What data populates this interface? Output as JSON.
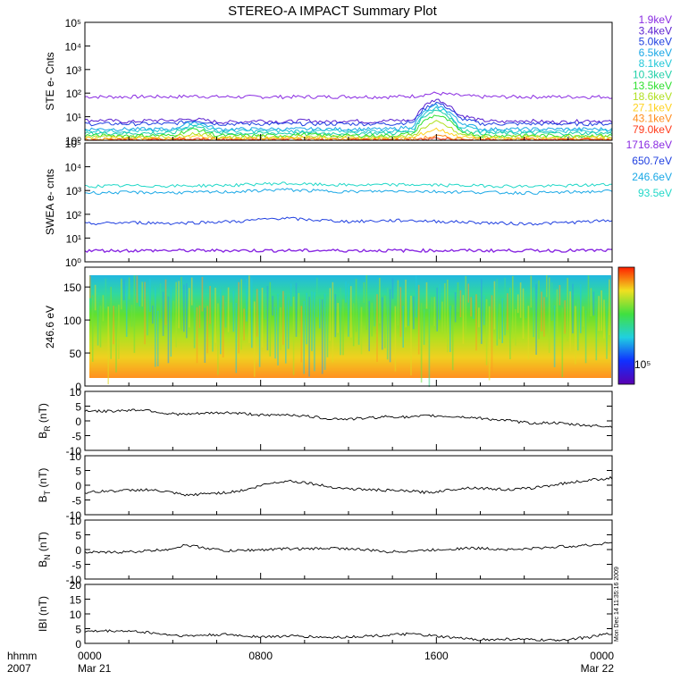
{
  "title": "STEREO-A IMPACT Summary Plot",
  "stamp": "Mon Dec 14 11:35:16 2009",
  "time_axis": {
    "ticks": [
      {
        "label": "0000",
        "sublabel": "Mar 21",
        "hour": 0
      },
      {
        "label": "0800",
        "sublabel": "",
        "hour": 8
      },
      {
        "label": "1600",
        "sublabel": "",
        "hour": 16
      },
      {
        "label": "0000",
        "sublabel": "Mar 22",
        "hour": 24
      }
    ],
    "left_label_1": "hhmm",
    "left_label_2": "2007"
  },
  "colors": {
    "ste": [
      "#8a2be2",
      "#5a1fd0",
      "#1f3fe0",
      "#1aa8e6",
      "#22c8d8",
      "#20d0a8",
      "#30e030",
      "#b0e020",
      "#ffd21e",
      "#ff8c1a",
      "#ff3a1a"
    ],
    "swea": [
      "#8a2be2",
      "#1f3fe0",
      "#1aa8e6",
      "#22d8c8"
    ]
  },
  "chart_data": [
    {
      "id": "ste",
      "type": "line",
      "ylabel": "STE e- Cnts",
      "yscale": "log",
      "ylim": [
        1,
        100000
      ],
      "ytick_labels": [
        "10⁰",
        "10¹",
        "10²",
        "10³",
        "10⁴",
        "10⁵"
      ],
      "series": [
        {
          "name": "1.9keV",
          "values": [
            70,
            70,
            70,
            72,
            70,
            75,
            70,
            70,
            70,
            70,
            70,
            70,
            72,
            70,
            70,
            75,
            100,
            80,
            70,
            70,
            70,
            70,
            70,
            70,
            70
          ]
        },
        {
          "name": "3.4keV",
          "values": [
            7,
            7,
            6,
            7,
            7,
            8,
            6,
            6,
            7,
            6,
            7,
            6,
            7,
            6,
            7,
            7,
            55,
            12,
            7,
            6,
            7,
            6,
            6,
            7,
            6
          ]
        },
        {
          "name": "5.0keV",
          "values": [
            5,
            5,
            5,
            5,
            5,
            7,
            5,
            5,
            5,
            5,
            5,
            5,
            5,
            5,
            5,
            6,
            40,
            9,
            5,
            5,
            5,
            5,
            5,
            5,
            5
          ]
        },
        {
          "name": "6.5keV",
          "values": [
            3,
            3,
            3,
            3,
            3,
            6,
            3,
            3,
            3,
            3,
            3,
            3,
            3,
            3,
            3,
            4,
            30,
            6,
            3,
            3,
            3,
            3,
            3,
            3,
            3
          ]
        },
        {
          "name": "8.1keV",
          "values": [
            2.5,
            2.5,
            2.5,
            2.5,
            2.5,
            5,
            2.5,
            2.5,
            2.5,
            2.5,
            2.5,
            2.5,
            2.5,
            2.5,
            2.5,
            3,
            25,
            4,
            2.5,
            2.5,
            2.5,
            2.5,
            2.5,
            2.5,
            2.5
          ]
        },
        {
          "name": "10.3keV",
          "values": [
            2,
            2,
            2,
            2,
            2,
            4,
            2,
            2,
            2,
            2,
            2,
            2,
            2,
            2,
            2,
            2.5,
            20,
            3,
            2,
            2,
            2,
            2,
            2,
            2,
            2
          ]
        },
        {
          "name": "13.5keV",
          "values": [
            1.6,
            1.6,
            1.6,
            1.6,
            1.6,
            3,
            1.6,
            1.6,
            1.6,
            1.6,
            1.8,
            1.6,
            1.6,
            1.6,
            1.6,
            2,
            12,
            2.5,
            1.6,
            1.6,
            1.6,
            1.6,
            1.6,
            1.6,
            1.6
          ]
        },
        {
          "name": "18.6keV",
          "values": [
            1.4,
            1.4,
            1.4,
            1.4,
            1.4,
            2,
            1.4,
            1.4,
            1.4,
            1.4,
            1.5,
            1.4,
            1.4,
            1.4,
            1.4,
            1.6,
            6,
            1.8,
            1.4,
            1.4,
            1.4,
            1.4,
            1.4,
            1.4,
            1.4
          ]
        },
        {
          "name": "27.1keV",
          "values": [
            1.2,
            1.2,
            1.2,
            1.2,
            1.2,
            1.5,
            1.2,
            1.2,
            1.2,
            1.2,
            1.3,
            1.2,
            1.2,
            1.2,
            1.2,
            1.3,
            3,
            1.4,
            1.2,
            1.2,
            1.2,
            1.2,
            1.2,
            1.2,
            1.2
          ]
        },
        {
          "name": "43.1keV",
          "values": [
            1.1,
            1.1,
            1.1,
            1.1,
            1.1,
            1.2,
            1.1,
            1.1,
            1.1,
            1.1,
            1.2,
            1.1,
            1.1,
            1.1,
            1.1,
            1.1,
            1.5,
            1.2,
            1.1,
            1.1,
            1.1,
            1.1,
            1.1,
            1.1,
            1.1
          ]
        },
        {
          "name": "79.0keV",
          "values": [
            1,
            1,
            1,
            1,
            1,
            1.1,
            1,
            1,
            1,
            1,
            1,
            1,
            1,
            1,
            1,
            1,
            1.2,
            1,
            1,
            1,
            1,
            1,
            1,
            1,
            1
          ]
        }
      ]
    },
    {
      "id": "swea",
      "type": "line",
      "ylabel": "SWEA e- cnts",
      "yscale": "log",
      "ylim": [
        1,
        100000
      ],
      "ytick_labels": [
        "10⁰",
        "10¹",
        "10²",
        "10³",
        "10⁴",
        "10⁵"
      ],
      "series": [
        {
          "name": "1716.8eV",
          "values": [
            3,
            3,
            3,
            3,
            3,
            3,
            3,
            3,
            3,
            3,
            3,
            3,
            3,
            3,
            3,
            3,
            3,
            3,
            3,
            3,
            3,
            3,
            3,
            3,
            3
          ]
        },
        {
          "name": "650.7eV",
          "values": [
            40,
            42,
            45,
            44,
            42,
            45,
            48,
            50,
            60,
            70,
            60,
            55,
            50,
            52,
            55,
            55,
            50,
            48,
            45,
            42,
            40,
            42,
            45,
            50,
            55
          ]
        },
        {
          "name": "246.6eV",
          "values": [
            800,
            820,
            840,
            830,
            820,
            840,
            860,
            900,
            1000,
            1100,
            1000,
            950,
            900,
            920,
            950,
            950,
            900,
            880,
            850,
            820,
            800,
            820,
            850,
            900,
            950
          ]
        },
        {
          "name": "93.5eV",
          "values": [
            1500,
            1550,
            1600,
            1580,
            1560,
            1600,
            1650,
            1700,
            1900,
            2000,
            1850,
            1750,
            1700,
            1720,
            1750,
            1750,
            1700,
            1650,
            1600,
            1550,
            1500,
            1550,
            1600,
            1700,
            1800
          ]
        }
      ]
    },
    {
      "id": "pad",
      "type": "heatmap",
      "ylabel": "246.6 eV",
      "ylim": [
        0,
        180
      ],
      "yticks": [
        0,
        50,
        100,
        150
      ],
      "colorbar_label": "10⁵"
    },
    {
      "id": "br",
      "type": "line",
      "ylabel": "BR (nT)",
      "ylim": [
        -10,
        10
      ],
      "yticks": [
        -10,
        -5,
        0,
        5,
        10
      ],
      "values": [
        3.5,
        3.2,
        3.6,
        3.8,
        2.5,
        2.2,
        2.6,
        2.8,
        2.4,
        1.8,
        2.2,
        1.5,
        0.8,
        0.6,
        1,
        1.5,
        1.2,
        1.8,
        1.5,
        1.2,
        0.6,
        0,
        -0.8,
        -0.6,
        -1.2,
        -1.6,
        -2
      ]
    },
    {
      "id": "bt",
      "type": "line",
      "ylabel": "BT (nT)",
      "ylim": [
        -10,
        10
      ],
      "yticks": [
        -10,
        -5,
        0,
        5,
        10
      ],
      "values": [
        -2.5,
        -2,
        -1.8,
        -1.5,
        -2.2,
        -3.5,
        -2.8,
        -2.5,
        -1.5,
        0.5,
        1.5,
        0.8,
        -0.5,
        -1.2,
        -1.5,
        -1.8,
        -2,
        -2.5,
        -1.5,
        -0.8,
        -1.2,
        -1.5,
        -1,
        0,
        1,
        1.8,
        2.5
      ]
    },
    {
      "id": "bn",
      "type": "line",
      "ylabel": "BN (nT)",
      "ylim": [
        -10,
        10
      ],
      "yticks": [
        -10,
        -5,
        0,
        5,
        10
      ],
      "values": [
        -1,
        -1,
        -0.8,
        -0.5,
        0,
        1.5,
        0.5,
        -0.5,
        -0.2,
        0,
        0.3,
        0.2,
        0.5,
        0.3,
        -0.2,
        -0.8,
        -0.5,
        -0.2,
        0.2,
        0.5,
        0.3,
        0,
        0.3,
        0.8,
        1.2,
        1.5,
        2.5
      ]
    },
    {
      "id": "bmag",
      "type": "line",
      "ylabel": "IBI (nT)",
      "ylim": [
        0,
        20
      ],
      "yticks": [
        0,
        5,
        10,
        15,
        20
      ],
      "values": [
        4,
        4.2,
        4.2,
        3.8,
        3,
        2.5,
        2.8,
        3,
        2.5,
        2.2,
        2.5,
        2.3,
        2,
        2.2,
        2.5,
        2.8,
        3.2,
        2.6,
        2,
        1.5,
        1.2,
        1.5,
        1.2,
        1,
        1.5,
        2.2,
        3.5
      ]
    }
  ]
}
